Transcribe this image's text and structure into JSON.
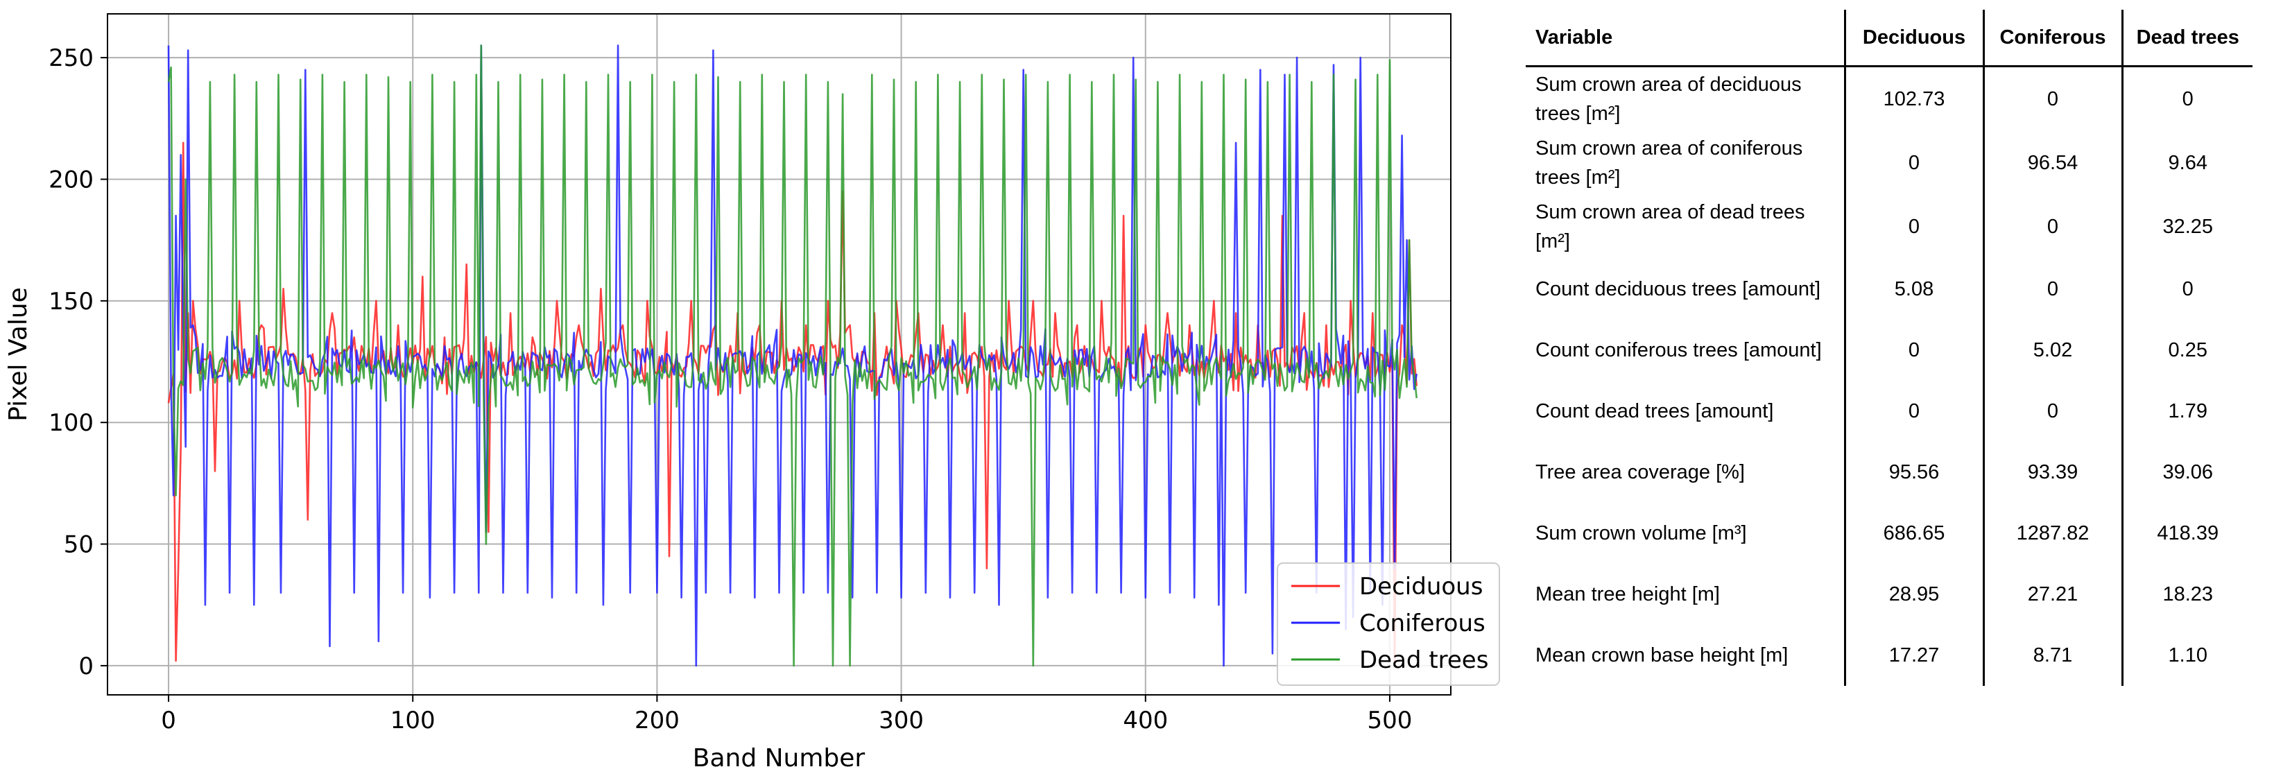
{
  "chart_data": {
    "type": "line",
    "title": "",
    "xlabel": "Band Number",
    "ylabel": "Pixel Value",
    "xlim": [
      -25,
      525
    ],
    "ylim": [
      -12,
      268
    ],
    "x_ticks": [
      0,
      100,
      200,
      300,
      400,
      500
    ],
    "y_ticks": [
      0,
      50,
      100,
      150,
      200,
      250
    ],
    "grid": true,
    "legend": "bottom-right",
    "series": [
      {
        "name": "Deciduous",
        "color": "#ff2020",
        "baseline": 125,
        "x": [
          0,
          2,
          3,
          4,
          5,
          6,
          8,
          10,
          19,
          29,
          38,
          47,
          57,
          67,
          76,
          85,
          94,
          104,
          113,
          122,
          131,
          140,
          149,
          159,
          168,
          177,
          186,
          196,
          205,
          214,
          224,
          233,
          242,
          251,
          261,
          270,
          276,
          279,
          289,
          298,
          307,
          317,
          326,
          335,
          344,
          354,
          363,
          372,
          382,
          391,
          400,
          409,
          418,
          428,
          437,
          446,
          456,
          465,
          474,
          484,
          493,
          502,
          505,
          508,
          511
        ],
        "values": [
          108,
          120,
          2,
          40,
          90,
          215,
          145,
          150,
          80,
          150,
          140,
          155,
          60,
          145,
          135,
          150,
          140,
          160,
          135,
          165,
          55,
          145,
          135,
          150,
          140,
          155,
          140,
          150,
          45,
          150,
          140,
          145,
          140,
          150,
          140,
          150,
          195,
          140,
          145,
          150,
          145,
          140,
          145,
          40,
          150,
          150,
          145,
          140,
          150,
          185,
          140,
          145,
          140,
          150,
          145,
          140,
          185,
          145,
          140,
          150,
          145,
          0,
          140,
          175,
          115
        ]
      },
      {
        "name": "Coniferous",
        "color": "#2020ff",
        "baseline": 125,
        "x": [
          0,
          2,
          3,
          5,
          7,
          8,
          10,
          15,
          25,
          35,
          46,
          56,
          66,
          76,
          86,
          96,
          107,
          117,
          127,
          128,
          130,
          137,
          147,
          157,
          167,
          178,
          184,
          189,
          200,
          210,
          216,
          220,
          223,
          230,
          240,
          250,
          260,
          270,
          280,
          290,
          300,
          310,
          320,
          330,
          340,
          350,
          360,
          370,
          380,
          390,
          395,
          400,
          410,
          420,
          430,
          432,
          437,
          441,
          447,
          452,
          457,
          462,
          470,
          477,
          482,
          485,
          488,
          492,
          497,
          502,
          505,
          507,
          511
        ],
        "values": [
          255,
          70,
          185,
          210,
          90,
          253,
          140,
          25,
          30,
          25,
          30,
          245,
          8,
          30,
          10,
          30,
          28,
          30,
          30,
          255,
          55,
          30,
          30,
          28,
          30,
          25,
          255,
          30,
          30,
          28,
          0,
          30,
          253,
          30,
          28,
          30,
          30,
          30,
          28,
          30,
          28,
          30,
          28,
          30,
          25,
          245,
          28,
          30,
          30,
          30,
          250,
          28,
          30,
          28,
          25,
          0,
          215,
          30,
          245,
          5,
          243,
          250,
          30,
          247,
          15,
          20,
          250,
          30,
          25,
          40,
          218,
          175,
          120
        ]
      },
      {
        "name": "Dead trees",
        "color": "#2a9a2a",
        "baseline": 120,
        "x": [
          0,
          1,
          3,
          7,
          11,
          17,
          27,
          36,
          45,
          54,
          63,
          72,
          81,
          90,
          99,
          108,
          117,
          126,
          128,
          130,
          135,
          144,
          153,
          162,
          171,
          180,
          189,
          198,
          207,
          216,
          225,
          234,
          243,
          252,
          256,
          261,
          270,
          272,
          276,
          279,
          288,
          297,
          306,
          315,
          324,
          333,
          342,
          351,
          354,
          360,
          369,
          378,
          387,
          396,
          405,
          414,
          423,
          432,
          441,
          450,
          459,
          468,
          477,
          486,
          495,
          500,
          504,
          508,
          511
        ],
        "values": [
          240,
          246,
          70,
          200,
          130,
          240,
          243,
          240,
          243,
          241,
          243,
          240,
          243,
          242,
          240,
          243,
          240,
          243,
          255,
          50,
          240,
          243,
          241,
          243,
          240,
          243,
          240,
          243,
          240,
          243,
          242,
          240,
          243,
          240,
          0,
          243,
          240,
          0,
          235,
          0,
          243,
          241,
          240,
          243,
          240,
          243,
          241,
          243,
          0,
          240,
          243,
          240,
          243,
          241,
          240,
          243,
          240,
          243,
          241,
          240,
          243,
          240,
          243,
          241,
          243,
          249,
          110,
          175,
          110
        ]
      }
    ]
  },
  "table": {
    "headers": [
      "Variable",
      "Deciduous",
      "Coniferous",
      "Dead trees"
    ],
    "rows": [
      {
        "variable": "Sum crown area of deciduous trees [m²]",
        "deciduous": "102.73",
        "coniferous": "0",
        "dead": "0"
      },
      {
        "variable": "Sum crown area of coniferous trees [m²]",
        "deciduous": "0",
        "coniferous": "96.54",
        "dead": "9.64"
      },
      {
        "variable": "Sum crown area of dead trees [m²]",
        "deciduous": "0",
        "coniferous": "0",
        "dead": "32.25"
      },
      {
        "variable": "Count deciduous trees [amount]",
        "deciduous": "5.08",
        "coniferous": "0",
        "dead": "0"
      },
      {
        "variable": "Count coniferous trees [amount]",
        "deciduous": "0",
        "coniferous": "5.02",
        "dead": "0.25"
      },
      {
        "variable": "Count dead trees [amount]",
        "deciduous": "0",
        "coniferous": "0",
        "dead": "1.79"
      },
      {
        "variable": "Tree area coverage [%]",
        "deciduous": "95.56",
        "coniferous": "93.39",
        "dead": "39.06"
      },
      {
        "variable": "Sum crown volume [m³]",
        "deciduous": "686.65",
        "coniferous": "1287.82",
        "dead": "418.39"
      },
      {
        "variable": "Mean tree height [m]",
        "deciduous": "28.95",
        "coniferous": "27.21",
        "dead": "18.23"
      },
      {
        "variable": "Mean crown base height [m]",
        "deciduous": "17.27",
        "coniferous": "8.71",
        "dead": "1.10"
      }
    ]
  }
}
